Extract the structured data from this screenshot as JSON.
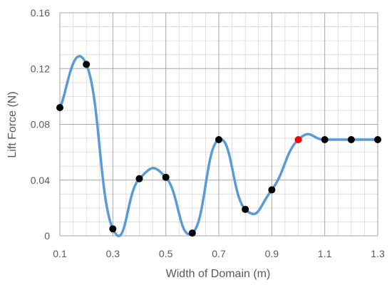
{
  "chart_data": {
    "type": "scatter",
    "title": "",
    "xlabel": "Width of Domain (m)",
    "ylabel": "Lift Force (N)",
    "xlim": [
      0.1,
      1.3
    ],
    "ylim": [
      0,
      0.16
    ],
    "x_ticks": [
      "0.1",
      "0.3",
      "0.5",
      "0.7",
      "0.9",
      "1.1",
      "1.3"
    ],
    "y_ticks": [
      "0",
      "0.04",
      "0.08",
      "0.12",
      "0.16"
    ],
    "grid": true,
    "line_style": "smoothed",
    "colors": {
      "line": "#5b9bd5",
      "marker": "#000000",
      "highlight": "#ff0000",
      "grid": "#bfbfbf"
    },
    "series": [
      {
        "x": [
          0.1,
          0.2,
          0.3,
          0.4,
          0.5,
          0.6,
          0.7,
          0.8,
          0.9,
          1.0,
          1.1,
          1.2,
          1.3
        ],
        "y": [
          0.092,
          0.123,
          0.005,
          0.041,
          0.042,
          0.002,
          0.069,
          0.019,
          0.033,
          0.069,
          0.069,
          0.069,
          0.069
        ],
        "highlight_index": 9
      }
    ]
  }
}
